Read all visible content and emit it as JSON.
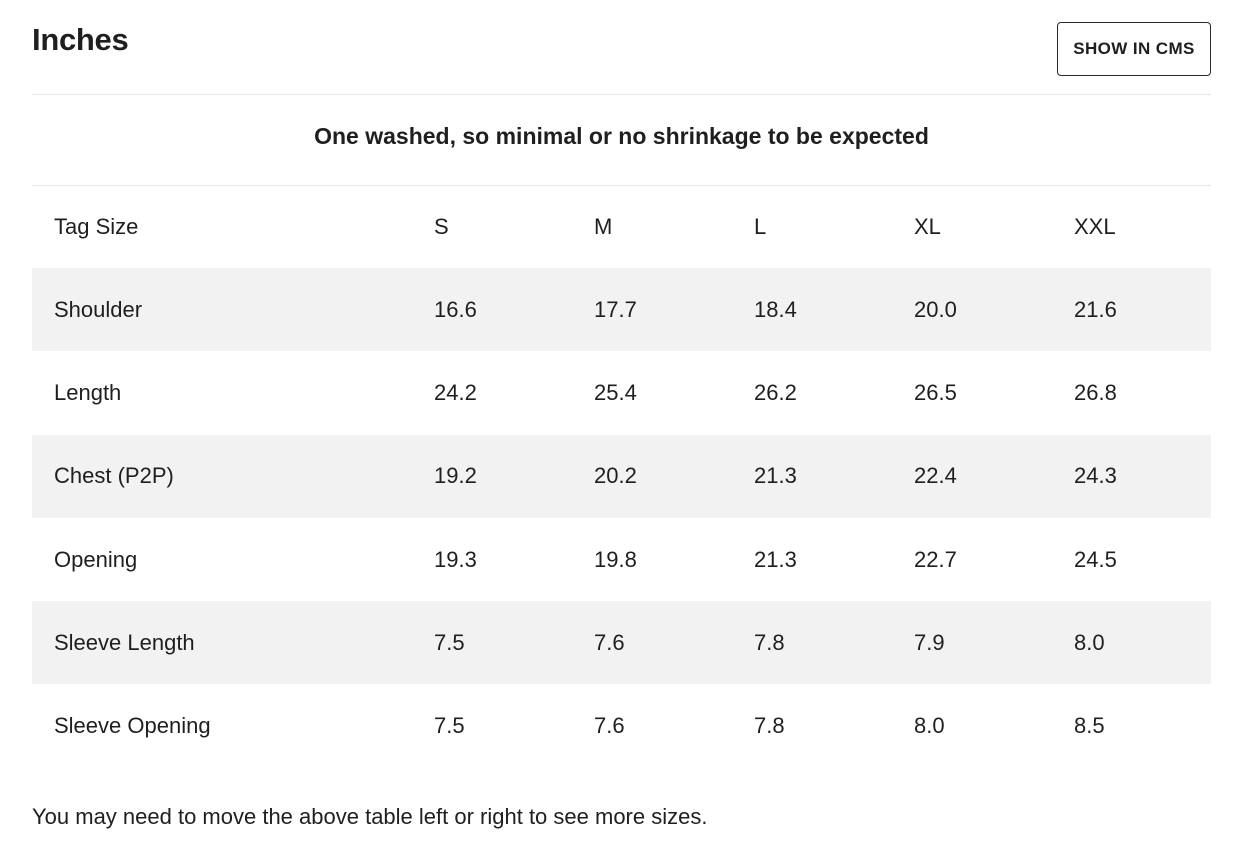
{
  "header": {
    "title": "Inches",
    "cms_button_label": "SHOW IN CMS"
  },
  "subtitle": "One washed, so minimal or no shrinkage to be expected",
  "table": {
    "columns": [
      "Tag Size",
      "S",
      "M",
      "L",
      "XL",
      "XXL"
    ],
    "rows": [
      {
        "label": "Shoulder",
        "values": [
          "16.6",
          "17.7",
          "18.4",
          "20.0",
          "21.6"
        ]
      },
      {
        "label": "Length",
        "values": [
          "24.2",
          "25.4",
          "26.2",
          "26.5",
          "26.8"
        ]
      },
      {
        "label": "Chest (P2P)",
        "values": [
          "19.2",
          "20.2",
          "21.3",
          "22.4",
          "24.3"
        ]
      },
      {
        "label": "Opening",
        "values": [
          "19.3",
          "19.8",
          "21.3",
          "22.7",
          "24.5"
        ]
      },
      {
        "label": "Sleeve Length",
        "values": [
          "7.5",
          "7.6",
          "7.8",
          "7.9",
          "8.0"
        ]
      },
      {
        "label": "Sleeve Opening",
        "values": [
          "7.5",
          "7.6",
          "7.8",
          "8.0",
          "8.5"
        ]
      }
    ]
  },
  "footnote": "You may need to move the above table left or right to see more sizes.",
  "colors": {
    "text": "#1f1f1f",
    "stripe": "#f2f2f2",
    "divider": "#e6e6e6",
    "background": "#ffffff"
  }
}
